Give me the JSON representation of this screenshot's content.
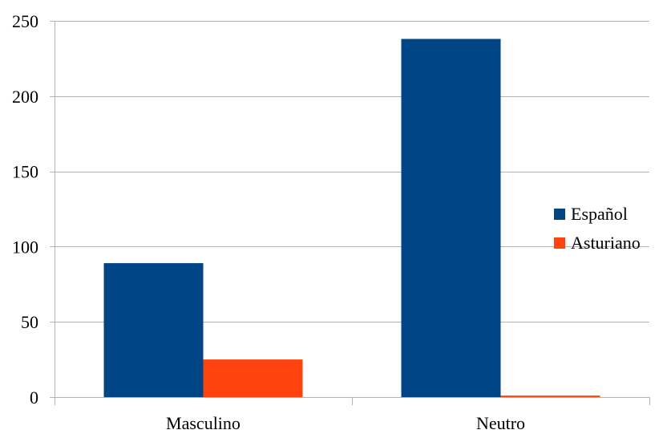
{
  "chart_data": {
    "type": "bar",
    "categories": [
      "Masculino",
      "Neutro"
    ],
    "series": [
      {
        "name": "Español",
        "values": [
          89,
          238
        ],
        "color": "#004586"
      },
      {
        "name": "Asturiano",
        "values": [
          25,
          1
        ],
        "color": "#ff420e"
      }
    ],
    "title": "",
    "xlabel": "",
    "ylabel": "",
    "ylim": [
      0,
      250
    ],
    "yticks": [
      0,
      50,
      100,
      150,
      200,
      250
    ],
    "grid": true,
    "legend_position": "right"
  },
  "colors": {
    "grid": "#b3b3b3",
    "axis": "#b3b3b3"
  }
}
